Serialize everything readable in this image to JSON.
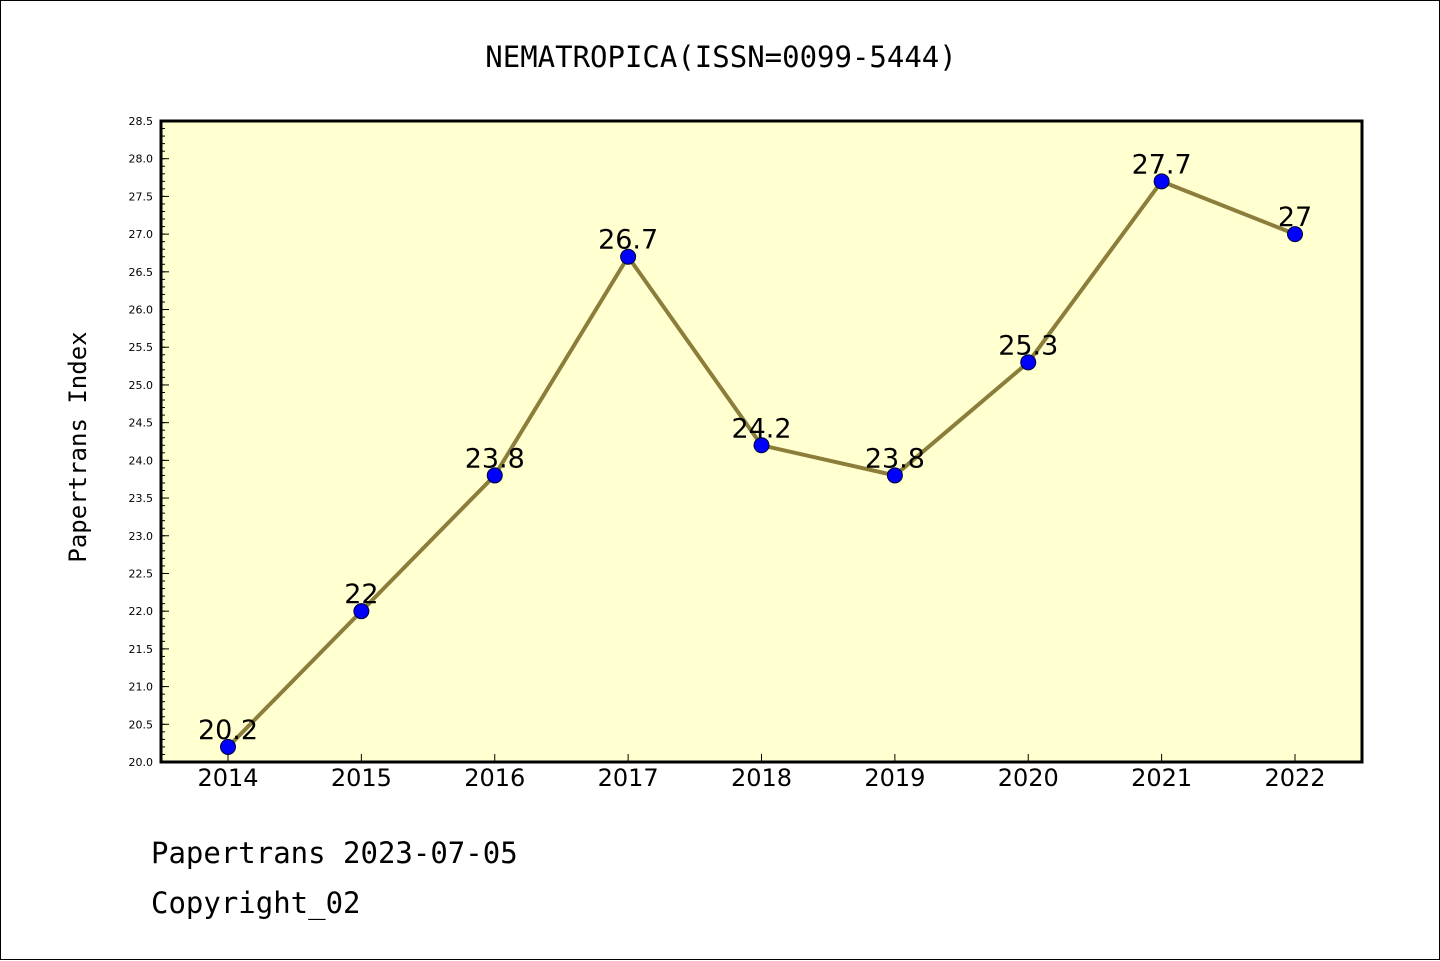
{
  "chart_data": {
    "type": "line",
    "title": "NEMATROPICA(ISSN=0099-5444)",
    "xlabel": "",
    "ylabel": "Papertrans Index",
    "categories": [
      "2014",
      "2015",
      "2016",
      "2017",
      "2018",
      "2019",
      "2020",
      "2021",
      "2022"
    ],
    "series": [
      {
        "values": [
          20.2,
          22,
          23.8,
          26.7,
          24.2,
          23.8,
          25.3,
          27.7,
          27
        ],
        "data_labels": [
          "20.2",
          "22",
          "23.8",
          "26.7",
          "24.2",
          "23.8",
          "25.3",
          "27.7",
          "27"
        ]
      }
    ],
    "ylim": [
      20.0,
      28.5
    ],
    "yticks": [
      "20.0",
      "20.5",
      "21.0",
      "21.5",
      "22.0",
      "22.5",
      "23.0",
      "23.5",
      "24.0",
      "24.5",
      "25.0",
      "25.5",
      "26.0",
      "26.5",
      "27.0",
      "27.5",
      "28.0",
      "28.5"
    ],
    "grid": false,
    "colors": {
      "plot_background": "#ffffd0",
      "line": "#8b7d3a",
      "marker": "#0000ff"
    }
  },
  "footer": {
    "line1": "Papertrans 2023-07-05",
    "line2": "Copyright_02"
  }
}
